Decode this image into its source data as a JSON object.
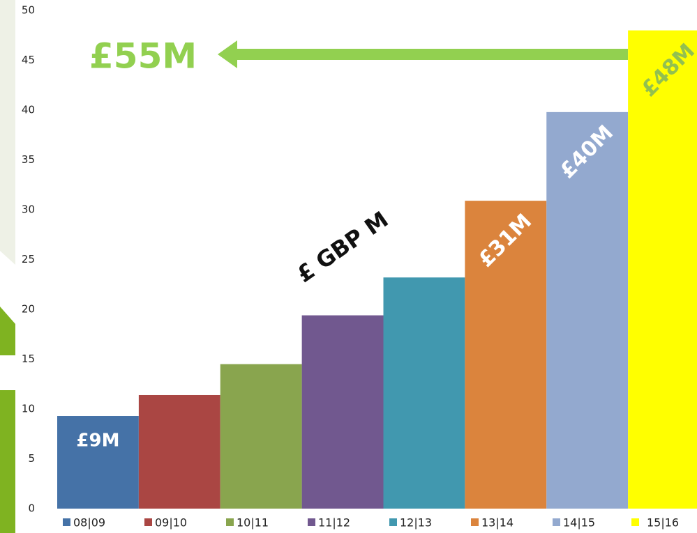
{
  "chart_data": {
    "type": "bar",
    "categories": [
      "08|09",
      "09|10",
      "10|11",
      "11|12",
      "12|13",
      "13|14",
      "14|15",
      "15|16"
    ],
    "values": [
      9.3,
      11.4,
      14.5,
      19.4,
      23.2,
      30.9,
      39.8,
      48
    ],
    "value_labels": [
      "£9M",
      null,
      null,
      null,
      null,
      "£31M",
      "£40M",
      "£48M"
    ],
    "colors": [
      "#4572a7",
      "#aa4643",
      "#89a54e",
      "#71588f",
      "#4198af",
      "#db843d",
      "#93a9cf",
      "#ffff00"
    ],
    "ylim": [
      0,
      50
    ],
    "yticks": [
      0,
      5,
      10,
      15,
      20,
      25,
      30,
      35,
      40,
      45,
      50
    ],
    "legend": "bottom",
    "annotations": [
      "£55M",
      "£ GBP M"
    ]
  }
}
